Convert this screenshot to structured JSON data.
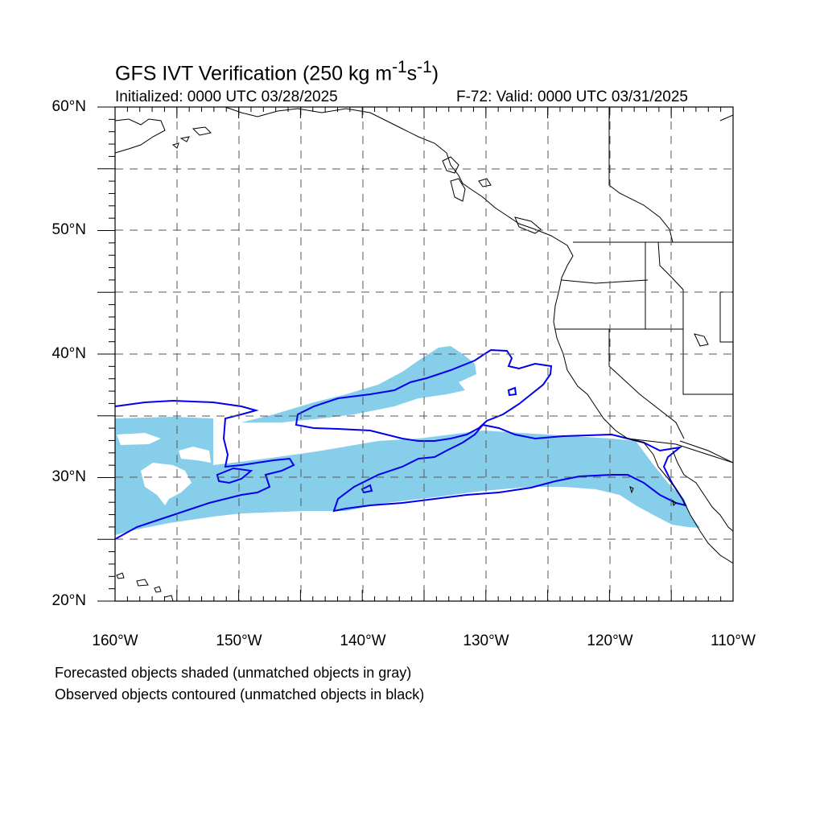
{
  "title": {
    "main": "GFS IVT Verification (250 kg m",
    "sup1": "-1",
    "mid": "s",
    "sup2": "-1",
    "end": ")"
  },
  "initialized": "Initialized: 0000 UTC 03/28/2025",
  "valid": "F-72: Valid: 0000 UTC 03/31/2025",
  "lat_labels": [
    "60°N",
    "50°N",
    "40°N",
    "30°N",
    "20°N"
  ],
  "lon_labels": [
    "160°W",
    "150°W",
    "140°W",
    "130°W",
    "120°W",
    "110°W"
  ],
  "footnotes": [
    "Forecasted objects shaded (unmatched objects in gray)",
    "Observed objects contoured (unmatched objects in black)"
  ],
  "map": {
    "extent": {
      "lon_min": -160,
      "lon_max": -110,
      "lat_min": 20,
      "lat_max": 60
    },
    "grid_spacing_deg": 5,
    "colors": {
      "forecast_fill": "#87ceeb",
      "observed_contour": "#0000ee",
      "coastline": "#000000",
      "grid": "#555555"
    }
  }
}
